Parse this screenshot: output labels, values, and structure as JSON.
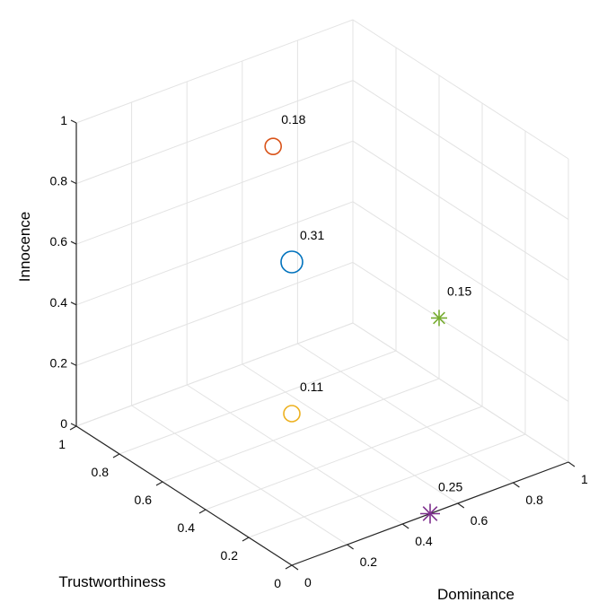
{
  "chart_data": {
    "type": "scatter",
    "projection": "3d",
    "xlabel": "Dominance",
    "ylabel": "Trustworthiness",
    "zlabel": "Innocence",
    "xlim": [
      0,
      1
    ],
    "ylim": [
      0,
      1
    ],
    "zlim": [
      0,
      1
    ],
    "xticks": [
      "0",
      "0.2",
      "0.4",
      "0.6",
      "0.8",
      "1"
    ],
    "yticks": [
      "0",
      "0.2",
      "0.4",
      "0.6",
      "0.8",
      "1"
    ],
    "zticks": [
      "0",
      "0.2",
      "0.4",
      "0.6",
      "0.8",
      "1"
    ],
    "grid": true,
    "points": [
      {
        "x": 0,
        "y": 0,
        "z": 1.0,
        "label": "0.31",
        "marker": "circle",
        "color": "#0072BD"
      },
      {
        "x": 0.4,
        "y": 0.6,
        "z": 0.97,
        "label": "0.18",
        "marker": "circle",
        "color": "#D95319"
      },
      {
        "x": 0,
        "y": 0,
        "z": 0.5,
        "label": "0.11",
        "marker": "circle",
        "color": "#EDB120"
      },
      {
        "x": 1.0,
        "y": 0.6,
        "z": 0.2,
        "label": "0.15",
        "marker": "asterisk",
        "color": "#77AC30"
      },
      {
        "x": 0.5,
        "y": 0.0,
        "z": 0.0,
        "label": "0.25",
        "marker": "asterisk",
        "color": "#7E2F8E"
      }
    ]
  }
}
